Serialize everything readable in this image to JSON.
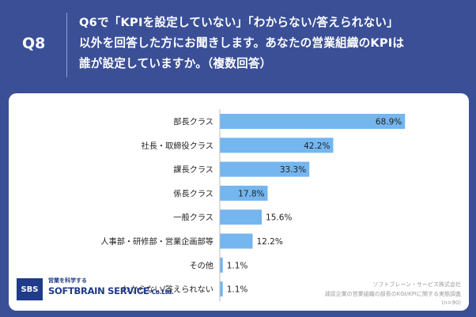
{
  "header": {
    "q_label": "Q8",
    "question_lines": [
      "Q6で「KPIを設定していない」「わからない/答えられない」",
      "以外を回答した方にお聞きします。あなたの営業組織のKPIは",
      "誰が設定していますか。（複数回答）"
    ]
  },
  "chart_data": {
    "type": "bar",
    "orientation": "horizontal",
    "categories": [
      "部長クラス",
      "社長・取締役クラス",
      "課長クラス",
      "係長クラス",
      "一般クラス",
      "人事部・研修部・営業企画部等",
      "その他",
      "わからない/答えられない"
    ],
    "values": [
      68.9,
      42.2,
      33.3,
      17.8,
      15.6,
      12.2,
      1.1,
      1.1
    ],
    "value_labels": [
      "68.9%",
      "42.2%",
      "33.3%",
      "17.8%",
      "15.6%",
      "12.2%",
      "1.1%",
      "1.1%"
    ],
    "xlim": [
      0,
      100
    ],
    "bar_color": "#73b6f0",
    "grid": false
  },
  "logo": {
    "badge": "SBS",
    "tagline": "営業を科学する",
    "name": "SOFTBRAIN SERVICE",
    "name_suffix": "Co.Ltd."
  },
  "source": {
    "lines": [
      "ソフトブレーン・サービス株式会社",
      "減収企業の営業組織の部長のKGI/KPIに関する実態調査",
      "(n=90)"
    ]
  },
  "colors": {
    "background": "#3a4f96",
    "card": "#ffffff",
    "text": "#222222"
  }
}
